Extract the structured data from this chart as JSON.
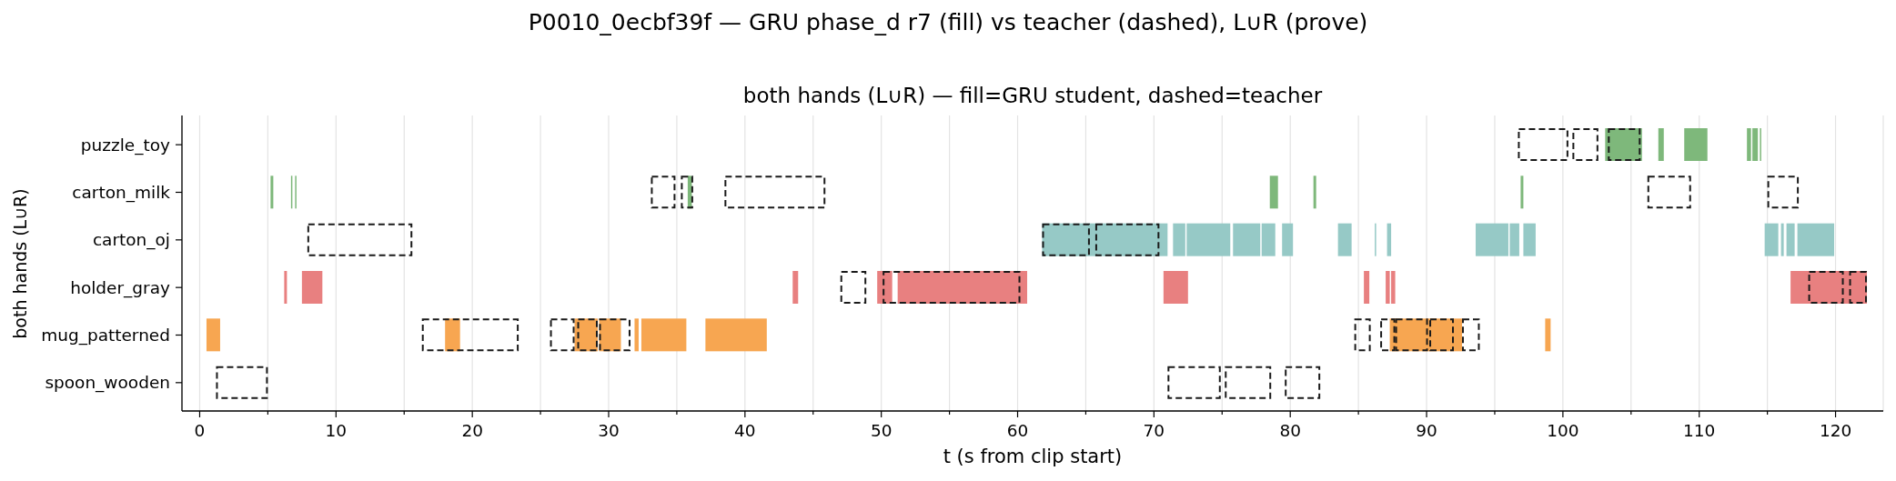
{
  "chart_data": {
    "type": "bar",
    "orientation": "horizontal",
    "title": "P0010_0ecbf39f — GRU phase_d r7 (fill) vs teacher (dashed), L∪R (prove)",
    "subtitle": "both hands (L∪R) — fill=GRU student, dashed=teacher",
    "xlabel": "t (s from clip start)",
    "ylabel": "both hands (L∪R)",
    "categories": [
      "puzzle_toy",
      "carton_milk",
      "carton_oj",
      "holder_gray",
      "mug_patterned",
      "spoon_wooden"
    ],
    "xlim": [
      -1.3,
      123.5
    ],
    "xticks": [
      0,
      {
        "value": 5,
        "label": null
      },
      10,
      {
        "value": 15,
        "label": null
      },
      20,
      {
        "value": 25,
        "label": null
      },
      30,
      {
        "value": 35,
        "label": null
      },
      40,
      {
        "value": 45,
        "label": null
      },
      50,
      {
        "value": 55,
        "label": null
      },
      60,
      {
        "value": 65,
        "label": null
      },
      70,
      {
        "value": 75,
        "label": null
      },
      80,
      {
        "value": 85,
        "label": null
      },
      90,
      {
        "value": 95,
        "label": null
      },
      100,
      {
        "value": 105,
        "label": null
      },
      110,
      {
        "value": 115,
        "label": null
      },
      120
    ],
    "grid": "x",
    "series": [
      {
        "values": [
          2.7,
          0.2,
          9.2,
          0.2,
          1.0,
          null
        ],
        "base": [
          103.1,
          5.2,
          61.8,
          6.2,
          0.5,
          null
        ],
        "colors": [
          "#7eb87b",
          "#7eb87b",
          "#96c9c6",
          "#e88080",
          "#f7a651",
          null
        ]
      },
      {
        "values": [
          0.4,
          0.1,
          0.9,
          1.5,
          1.1,
          null
        ],
        "base": [
          107.0,
          6.7,
          71.4,
          7.5,
          18.0,
          null
        ],
        "colors": [
          "#7eb87b",
          "#7eb87b",
          "#96c9c6",
          "#e88080",
          "#f7a651",
          null
        ]
      },
      {
        "values": [
          1.7,
          0.1,
          3.2,
          0.4,
          1.7,
          null
        ],
        "base": [
          108.9,
          7.0,
          72.4,
          43.5,
          27.5,
          null
        ],
        "colors": [
          "#7eb87b",
          "#7eb87b",
          "#96c9c6",
          "#e88080",
          "#f7a651",
          null
        ]
      },
      {
        "values": [
          0.3,
          0.3,
          2.0,
          1.1,
          1.6,
          null
        ],
        "base": [
          113.5,
          35.8,
          75.8,
          49.7,
          29.3,
          null
        ],
        "colors": [
          "#7eb87b",
          "#7eb87b",
          "#96c9c6",
          "#e88080",
          "#f7a651",
          null
        ]
      },
      {
        "values": [
          0.4,
          0.6,
          1.0,
          9.5,
          0.3,
          null
        ],
        "base": [
          113.9,
          78.5,
          77.9,
          51.2,
          31.9,
          null
        ],
        "colors": [
          "#7eb87b",
          "#7eb87b",
          "#96c9c6",
          "#e88080",
          "#f7a651",
          null
        ]
      },
      {
        "values": [
          0.1,
          0.2,
          0.8,
          1.8,
          3.3,
          null
        ],
        "base": [
          114.45,
          81.7,
          79.4,
          70.7,
          32.4,
          null
        ],
        "colors": [
          "#7eb87b",
          "#7eb87b",
          "#96c9c6",
          "#e88080",
          "#f7a651",
          null
        ]
      },
      {
        "values": [
          null,
          0.2,
          1.0,
          0.4,
          4.5,
          null
        ],
        "base": [
          null,
          96.9,
          83.5,
          85.4,
          37.1,
          null
        ],
        "colors": [
          null,
          "#7eb87b",
          "#96c9c6",
          "#e88080",
          "#f7a651",
          null
        ]
      },
      {
        "values": [
          null,
          null,
          0.1,
          0.3,
          5.3,
          null
        ],
        "base": [
          null,
          null,
          86.2,
          87.0,
          87.3,
          null
        ],
        "colors": [
          null,
          null,
          "#96c9c6",
          "#e88080",
          "#f7a651",
          null
        ]
      },
      {
        "values": [
          null,
          null,
          0.3,
          0.3,
          0.4,
          null
        ],
        "base": [
          null,
          null,
          87.1,
          87.4,
          98.7,
          null
        ],
        "colors": [
          null,
          null,
          "#96c9c6",
          "#e88080",
          "#f7a651",
          null
        ]
      },
      {
        "values": [
          null,
          null,
          2.4,
          5.6,
          null,
          null
        ],
        "base": [
          null,
          null,
          93.6,
          116.7,
          null,
          null
        ],
        "colors": [
          null,
          null,
          "#96c9c6",
          "#e88080",
          null,
          null
        ]
      },
      {
        "values": [
          null,
          null,
          0.7,
          null,
          null,
          null
        ],
        "base": [
          null,
          null,
          96.1,
          null,
          null,
          null
        ],
        "colors": [
          null,
          null,
          "#96c9c6",
          null,
          null,
          null
        ]
      },
      {
        "values": [
          null,
          null,
          0.9,
          null,
          null,
          null
        ],
        "base": [
          null,
          null,
          97.1,
          null,
          null,
          null
        ],
        "colors": [
          null,
          null,
          "#96c9c6",
          null,
          null,
          null
        ]
      },
      {
        "values": [
          null,
          null,
          1.0,
          null,
          null,
          null
        ],
        "base": [
          null,
          null,
          114.8,
          null,
          null,
          null
        ],
        "colors": [
          null,
          null,
          "#96c9c6",
          null,
          null,
          null
        ]
      },
      {
        "values": [
          null,
          null,
          0.2,
          null,
          null,
          null
        ],
        "base": [
          null,
          null,
          116.0,
          null,
          null,
          null
        ],
        "colors": [
          null,
          null,
          "#96c9c6",
          null,
          null,
          null
        ]
      },
      {
        "values": [
          null,
          null,
          0.6,
          null,
          null,
          null
        ],
        "base": [
          null,
          null,
          116.4,
          null,
          null,
          null
        ],
        "colors": [
          null,
          null,
          "#96c9c6",
          null,
          null,
          null
        ]
      },
      {
        "values": [
          null,
          null,
          2.7,
          null,
          null,
          null
        ],
        "base": [
          null,
          null,
          117.2,
          null,
          null,
          null
        ],
        "colors": [
          null,
          null,
          "#96c9c6",
          null,
          null,
          null
        ]
      },
      {
        "values": [
          3.7,
          1.8,
          7.7,
          1.9,
          7.1,
          3.8
        ],
        "base": [
          96.7,
          33.1,
          7.9,
          47.0,
          16.3,
          1.2
        ],
        "color": "#1a1a1a",
        "line_style": "dashed"
      },
      {
        "values": [
          1.9,
          0.9,
          3.5,
          10.1,
          1.8,
          3.9
        ],
        "base": [
          100.7,
          35.3,
          61.8,
          50.1,
          25.7,
          71.0
        ],
        "color": "#1a1a1a",
        "line_style": "dashed"
      },
      {
        "values": [
          2.4,
          7.4,
          4.7,
          2.6,
          1.5,
          3.4
        ],
        "base": [
          103.3,
          38.5,
          65.7,
          118.0,
          27.7,
          75.2
        ],
        "color": "#1a1a1a",
        "line_style": "dashed"
      },
      {
        "values": [
          null,
          3.2,
          null,
          1.3,
          2.3,
          2.6
        ],
        "base": [
          null,
          106.2,
          null,
          121.0,
          29.3,
          79.6
        ],
        "color": "#1a1a1a",
        "line_style": "dashed"
      },
      {
        "values": [
          null,
          2.3,
          null,
          null,
          1.2,
          null
        ],
        "base": [
          null,
          115.0,
          null,
          null,
          84.7,
          null
        ],
        "color": "#1a1a1a",
        "line_style": "dashed"
      },
      {
        "values": [
          null,
          null,
          null,
          null,
          1.1,
          null
        ],
        "base": [
          null,
          null,
          null,
          null,
          86.6,
          null
        ],
        "color": "#1a1a1a",
        "line_style": "dashed"
      },
      {
        "values": [
          null,
          null,
          null,
          null,
          2.4,
          null
        ],
        "base": [
          null,
          null,
          null,
          null,
          87.7,
          null
        ],
        "color": "#1a1a1a",
        "line_style": "dashed"
      },
      {
        "values": [
          null,
          null,
          null,
          null,
          1.8,
          null
        ],
        "base": [
          null,
          null,
          null,
          null,
          90.2,
          null
        ],
        "color": "#1a1a1a",
        "line_style": "dashed"
      },
      {
        "values": [
          null,
          null,
          null,
          null,
          1.3,
          null
        ],
        "base": [
          null,
          null,
          null,
          null,
          92.6,
          null
        ],
        "color": "#1a1a1a",
        "line_style": "dashed"
      }
    ]
  }
}
